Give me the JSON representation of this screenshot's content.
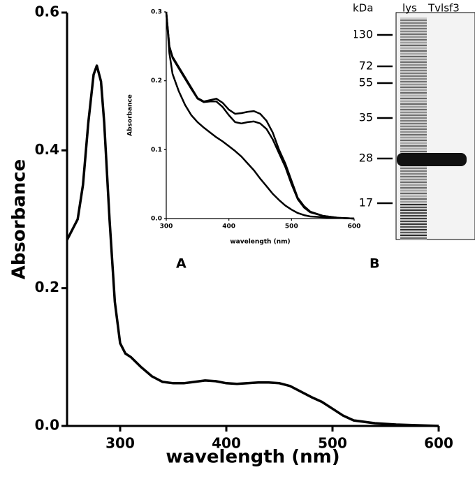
{
  "chart_data": [
    {
      "type": "line",
      "xlabel": "wavelength (nm)",
      "ylabel": "Absorbance",
      "x": [
        250,
        260,
        265,
        270,
        275,
        278,
        282,
        285,
        290,
        295,
        300,
        305,
        310,
        320,
        330,
        340,
        350,
        360,
        370,
        380,
        390,
        400,
        410,
        420,
        430,
        440,
        450,
        460,
        470,
        480,
        490,
        500,
        510,
        520,
        540,
        560,
        580,
        600
      ],
      "series": [
        {
          "color": "#000000",
          "values": [
            0.27,
            0.3,
            0.35,
            0.44,
            0.51,
            0.523,
            0.5,
            0.44,
            0.3,
            0.18,
            0.12,
            0.105,
            0.1,
            0.085,
            0.072,
            0.064,
            0.062,
            0.062,
            0.064,
            0.066,
            0.065,
            0.062,
            0.061,
            0.062,
            0.063,
            0.063,
            0.062,
            0.058,
            0.05,
            0.042,
            0.035,
            0.025,
            0.015,
            0.008,
            0.004,
            0.002,
            0.001,
            0
          ]
        }
      ],
      "xlim": [
        250,
        600
      ],
      "xticks": [
        300,
        400,
        500,
        600
      ],
      "ylim": [
        0,
        0.6
      ],
      "yticks": [
        {
          "value": 0,
          "label": "0.0"
        },
        0.2,
        0.4,
        0.6
      ]
    },
    {
      "type": "line",
      "xlabel": "wavelength (nm)",
      "ylabel": "Absorbance",
      "x": [
        300,
        305,
        310,
        320,
        330,
        340,
        350,
        360,
        370,
        380,
        390,
        400,
        410,
        420,
        430,
        440,
        450,
        460,
        470,
        480,
        490,
        500,
        510,
        520,
        530,
        550,
        575,
        600
      ],
      "series": [
        {
          "color": "#000000",
          "values": [
            0.3,
            0.25,
            0.235,
            0.22,
            0.205,
            0.19,
            0.175,
            0.17,
            0.172,
            0.174,
            0.168,
            0.158,
            0.152,
            0.153,
            0.155,
            0.156,
            0.152,
            0.142,
            0.125,
            0.1,
            0.08,
            0.055,
            0.03,
            0.018,
            0.01,
            0.004,
            0.001,
            0
          ]
        },
        {
          "color": "#000000",
          "values": [
            0.3,
            0.25,
            0.233,
            0.218,
            0.203,
            0.188,
            0.174,
            0.169,
            0.17,
            0.17,
            0.162,
            0.15,
            0.14,
            0.138,
            0.14,
            0.141,
            0.138,
            0.13,
            0.115,
            0.095,
            0.075,
            0.05,
            0.028,
            0.016,
            0.009,
            0.004,
            0.001,
            0
          ]
        },
        {
          "color": "#000000",
          "values": [
            0.3,
            0.24,
            0.21,
            0.185,
            0.165,
            0.15,
            0.14,
            0.132,
            0.125,
            0.118,
            0.112,
            0.105,
            0.098,
            0.09,
            0.08,
            0.07,
            0.058,
            0.047,
            0.036,
            0.027,
            0.019,
            0.013,
            0.008,
            0.005,
            0.003,
            0.002,
            0.001,
            0
          ]
        }
      ],
      "xlim": [
        300,
        600
      ],
      "xticks": [
        300,
        400,
        500,
        600
      ],
      "ylim": [
        0,
        0.3
      ],
      "yticks": [
        {
          "value": 0,
          "label": "0.0"
        },
        0.1,
        0.2,
        0.3
      ]
    }
  ],
  "panel_labels": [
    "A",
    "B"
  ],
  "gel": {
    "unit": "kDa",
    "lanes": [
      "lys",
      "Tvlsf3"
    ],
    "markers": [
      "130",
      "72",
      "55",
      "35",
      "28",
      "17"
    ]
  }
}
